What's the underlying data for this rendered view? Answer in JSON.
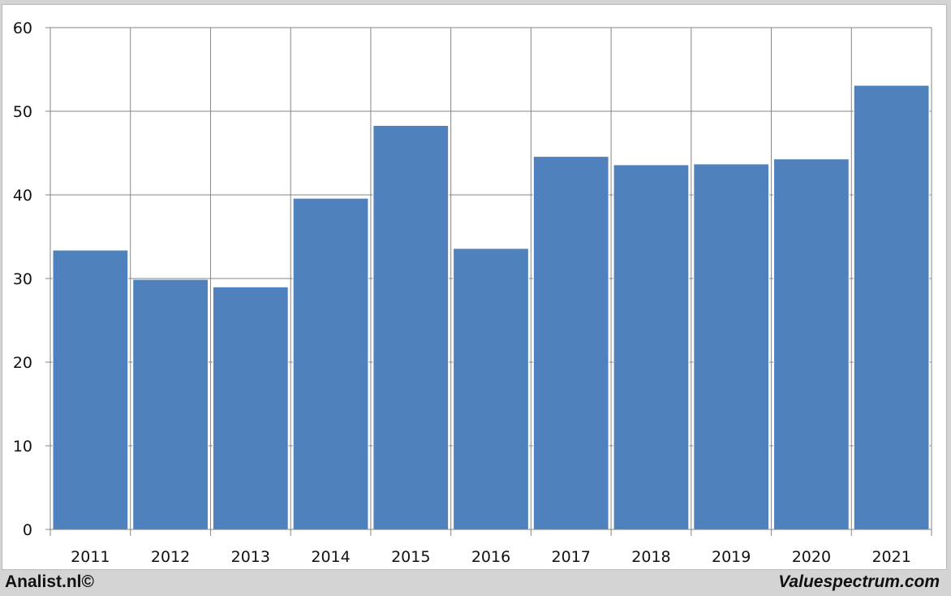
{
  "chart_data": {
    "type": "bar",
    "categories": [
      "2011",
      "2012",
      "2013",
      "2014",
      "2015",
      "2016",
      "2017",
      "2018",
      "2019",
      "2020",
      "2021"
    ],
    "values": [
      33.4,
      29.9,
      29.0,
      39.6,
      48.3,
      33.6,
      44.6,
      43.6,
      43.7,
      44.3,
      53.1
    ],
    "ylim": [
      0,
      60
    ],
    "yticks": [
      "0",
      "10",
      "20",
      "30",
      "40",
      "50",
      "60"
    ],
    "grid": true,
    "bar_color": "#4f81bd",
    "grid_color": "#868686",
    "title": "",
    "xlabel": "",
    "ylabel": ""
  },
  "footer": {
    "left": "Analist.nl©",
    "right": "Valuespectrum.com"
  }
}
